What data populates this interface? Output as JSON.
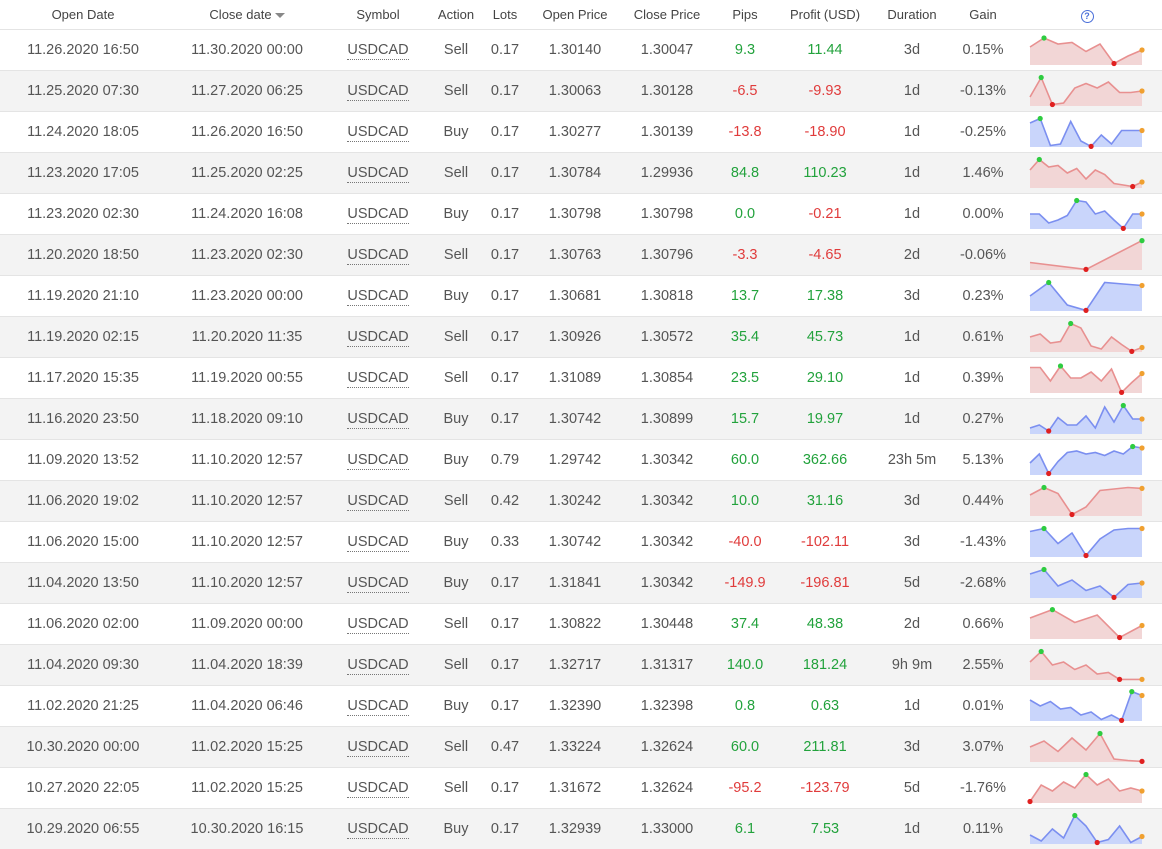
{
  "headers": {
    "open_date": "Open Date",
    "close_date": "Close date",
    "symbol": "Symbol",
    "action": "Action",
    "lots": "Lots",
    "open_price": "Open Price",
    "close_price": "Close Price",
    "pips": "Pips",
    "profit": "Profit (USD)",
    "duration": "Duration",
    "gain": "Gain",
    "help": "?"
  },
  "colors": {
    "positive": "#22a23c",
    "negative": "#e03b3b",
    "buy_fill": "#c9d5fb",
    "buy_line": "#7b8ff0",
    "sell_fill": "#f2d6d6",
    "sell_line": "#e89090",
    "max_dot": "#2ecc40",
    "min_dot": "#e02020",
    "end_dot": "#f0a030"
  },
  "rows": [
    {
      "open": "11.26.2020 16:50",
      "close": "11.30.2020 00:00",
      "symbol": "USDCAD",
      "action": "Sell",
      "lots": "0.17",
      "open_price": "1.30140",
      "close_price": "1.30047",
      "pips": "9.3",
      "profit": "11.44",
      "duration": "3d",
      "gain": "0.15%",
      "spark": [
        0.6,
        0.9,
        0.7,
        0.75,
        0.45,
        0.7,
        0.05,
        0.3,
        0.5
      ]
    },
    {
      "open": "11.25.2020 07:30",
      "close": "11.27.2020 06:25",
      "symbol": "USDCAD",
      "action": "Sell",
      "lots": "0.17",
      "open_price": "1.30063",
      "close_price": "1.30128",
      "pips": "-6.5",
      "profit": "-9.93",
      "duration": "1d",
      "gain": "-0.13%",
      "spark": [
        0.3,
        0.95,
        0.05,
        0.1,
        0.6,
        0.75,
        0.6,
        0.8,
        0.45,
        0.45,
        0.5
      ]
    },
    {
      "open": "11.24.2020 18:05",
      "close": "11.26.2020 16:50",
      "symbol": "USDCAD",
      "action": "Buy",
      "lots": "0.17",
      "open_price": "1.30277",
      "close_price": "1.30139",
      "pips": "-13.8",
      "profit": "-18.90",
      "duration": "1d",
      "gain": "-0.25%",
      "spark": [
        0.8,
        0.95,
        0.05,
        0.1,
        0.85,
        0.2,
        0.02,
        0.4,
        0.1,
        0.55,
        0.55,
        0.55
      ]
    },
    {
      "open": "11.23.2020 17:05",
      "close": "11.25.2020 02:25",
      "symbol": "USDCAD",
      "action": "Sell",
      "lots": "0.17",
      "open_price": "1.30784",
      "close_price": "1.29936",
      "pips": "84.8",
      "profit": "110.23",
      "duration": "1d",
      "gain": "1.46%",
      "spark": [
        0.6,
        0.95,
        0.7,
        0.75,
        0.5,
        0.65,
        0.3,
        0.6,
        0.45,
        0.15,
        0.1,
        0.05,
        0.2
      ]
    },
    {
      "open": "11.23.2020 02:30",
      "close": "11.24.2020 16:08",
      "symbol": "USDCAD",
      "action": "Buy",
      "lots": "0.17",
      "open_price": "1.30798",
      "close_price": "1.30798",
      "pips": "0.0",
      "profit": "-0.21",
      "duration": "1d",
      "gain": "0.00%",
      "spark": [
        0.5,
        0.5,
        0.2,
        0.3,
        0.45,
        0.95,
        0.9,
        0.5,
        0.6,
        0.3,
        0.02,
        0.5,
        0.5
      ]
    },
    {
      "open": "11.20.2020 18:50",
      "close": "11.23.2020 02:30",
      "symbol": "USDCAD",
      "action": "Sell",
      "lots": "0.17",
      "open_price": "1.30763",
      "close_price": "1.30796",
      "pips": "-3.3",
      "profit": "-4.65",
      "duration": "2d",
      "gain": "-0.06%",
      "spark": [
        0.25,
        0.02,
        0.98
      ]
    },
    {
      "open": "11.19.2020 21:10",
      "close": "11.23.2020 00:00",
      "symbol": "USDCAD",
      "action": "Buy",
      "lots": "0.17",
      "open_price": "1.30681",
      "close_price": "1.30818",
      "pips": "13.7",
      "profit": "17.38",
      "duration": "3d",
      "gain": "0.23%",
      "spark": [
        0.5,
        0.95,
        0.2,
        0.02,
        0.95,
        0.9,
        0.85
      ]
    },
    {
      "open": "11.19.2020 02:15",
      "close": "11.20.2020 11:35",
      "symbol": "USDCAD",
      "action": "Sell",
      "lots": "0.17",
      "open_price": "1.30926",
      "close_price": "1.30572",
      "pips": "35.4",
      "profit": "45.73",
      "duration": "1d",
      "gain": "0.61%",
      "spark": [
        0.5,
        0.6,
        0.3,
        0.35,
        0.95,
        0.8,
        0.2,
        0.1,
        0.5,
        0.25,
        0.02,
        0.15
      ]
    },
    {
      "open": "11.17.2020 15:35",
      "close": "11.19.2020 00:55",
      "symbol": "USDCAD",
      "action": "Sell",
      "lots": "0.17",
      "open_price": "1.31089",
      "close_price": "1.30854",
      "pips": "23.5",
      "profit": "29.10",
      "duration": "1d",
      "gain": "0.39%",
      "spark": [
        0.85,
        0.85,
        0.4,
        0.9,
        0.5,
        0.5,
        0.7,
        0.4,
        0.8,
        0.02,
        0.35,
        0.65
      ]
    },
    {
      "open": "11.16.2020 23:50",
      "close": "11.18.2020 09:10",
      "symbol": "USDCAD",
      "action": "Buy",
      "lots": "0.17",
      "open_price": "1.30742",
      "close_price": "1.30899",
      "pips": "15.7",
      "profit": "19.97",
      "duration": "1d",
      "gain": "0.27%",
      "spark": [
        0.2,
        0.3,
        0.1,
        0.55,
        0.3,
        0.3,
        0.6,
        0.2,
        0.9,
        0.4,
        0.95,
        0.5,
        0.5
      ]
    },
    {
      "open": "11.09.2020 13:52",
      "close": "11.10.2020 12:57",
      "symbol": "USDCAD",
      "action": "Buy",
      "lots": "0.79",
      "open_price": "1.29742",
      "close_price": "1.30342",
      "pips": "60.0",
      "profit": "362.66",
      "duration": "23h 5m",
      "gain": "5.13%",
      "spark": [
        0.4,
        0.7,
        0.05,
        0.45,
        0.75,
        0.8,
        0.7,
        0.75,
        0.65,
        0.8,
        0.7,
        0.95,
        0.9
      ]
    },
    {
      "open": "11.06.2020 19:02",
      "close": "11.10.2020 12:57",
      "symbol": "USDCAD",
      "action": "Sell",
      "lots": "0.42",
      "open_price": "1.30242",
      "close_price": "1.30342",
      "pips": "10.0",
      "profit": "31.16",
      "duration": "3d",
      "gain": "0.44%",
      "spark": [
        0.7,
        0.95,
        0.75,
        0.05,
        0.3,
        0.85,
        0.9,
        0.95,
        0.92
      ]
    },
    {
      "open": "11.06.2020 15:00",
      "close": "11.10.2020 12:57",
      "symbol": "USDCAD",
      "action": "Buy",
      "lots": "0.33",
      "open_price": "1.30742",
      "close_price": "1.30342",
      "pips": "-40.0",
      "profit": "-102.11",
      "duration": "3d",
      "gain": "-1.43%",
      "spark": [
        0.85,
        0.95,
        0.45,
        0.8,
        0.05,
        0.6,
        0.9,
        0.95,
        0.95
      ]
    },
    {
      "open": "11.04.2020 13:50",
      "close": "11.10.2020 12:57",
      "symbol": "USDCAD",
      "action": "Buy",
      "lots": "0.17",
      "open_price": "1.31841",
      "close_price": "1.30342",
      "pips": "-149.9",
      "profit": "-196.81",
      "duration": "5d",
      "gain": "-2.68%",
      "spark": [
        0.8,
        0.95,
        0.4,
        0.6,
        0.25,
        0.4,
        0.02,
        0.45,
        0.5
      ]
    },
    {
      "open": "11.06.2020 02:00",
      "close": "11.09.2020 00:00",
      "symbol": "USDCAD",
      "action": "Sell",
      "lots": "0.17",
      "open_price": "1.30822",
      "close_price": "1.30448",
      "pips": "37.4",
      "profit": "48.38",
      "duration": "2d",
      "gain": "0.66%",
      "spark": [
        0.7,
        0.98,
        0.55,
        0.8,
        0.05,
        0.45
      ]
    },
    {
      "open": "11.04.2020 09:30",
      "close": "11.04.2020 18:39",
      "symbol": "USDCAD",
      "action": "Sell",
      "lots": "0.17",
      "open_price": "1.32717",
      "close_price": "1.31317",
      "pips": "140.0",
      "profit": "181.24",
      "duration": "9h 9m",
      "gain": "2.55%",
      "spark": [
        0.6,
        0.95,
        0.5,
        0.6,
        0.35,
        0.5,
        0.2,
        0.25,
        0.02,
        0.02,
        0.02
      ]
    },
    {
      "open": "11.02.2020 21:25",
      "close": "11.04.2020 06:46",
      "symbol": "USDCAD",
      "action": "Buy",
      "lots": "0.17",
      "open_price": "1.32390",
      "close_price": "1.32398",
      "pips": "0.8",
      "profit": "0.63",
      "duration": "1d",
      "gain": "0.01%",
      "spark": [
        0.7,
        0.5,
        0.65,
        0.4,
        0.45,
        0.2,
        0.3,
        0.05,
        0.2,
        0.02,
        0.98,
        0.85
      ]
    },
    {
      "open": "10.30.2020 00:00",
      "close": "11.02.2020 15:25",
      "symbol": "USDCAD",
      "action": "Sell",
      "lots": "0.47",
      "open_price": "1.33224",
      "close_price": "1.32624",
      "pips": "60.0",
      "profit": "211.81",
      "duration": "3d",
      "gain": "3.07%",
      "spark": [
        0.5,
        0.7,
        0.35,
        0.8,
        0.4,
        0.95,
        0.1,
        0.05,
        0.02
      ]
    },
    {
      "open": "10.27.2020 22:05",
      "close": "11.02.2020 15:25",
      "symbol": "USDCAD",
      "action": "Sell",
      "lots": "0.17",
      "open_price": "1.31672",
      "close_price": "1.32624",
      "pips": "-95.2",
      "profit": "-123.79",
      "duration": "5d",
      "gain": "-1.76%",
      "spark": [
        0.05,
        0.6,
        0.4,
        0.7,
        0.5,
        0.95,
        0.6,
        0.8,
        0.4,
        0.5,
        0.4
      ]
    },
    {
      "open": "10.29.2020 06:55",
      "close": "10.30.2020 16:15",
      "symbol": "USDCAD",
      "action": "Buy",
      "lots": "0.17",
      "open_price": "1.32939",
      "close_price": "1.33000",
      "pips": "6.1",
      "profit": "7.53",
      "duration": "1d",
      "gain": "0.11%",
      "spark": [
        0.3,
        0.1,
        0.5,
        0.2,
        0.95,
        0.6,
        0.05,
        0.15,
        0.6,
        0.05,
        0.25
      ]
    }
  ]
}
